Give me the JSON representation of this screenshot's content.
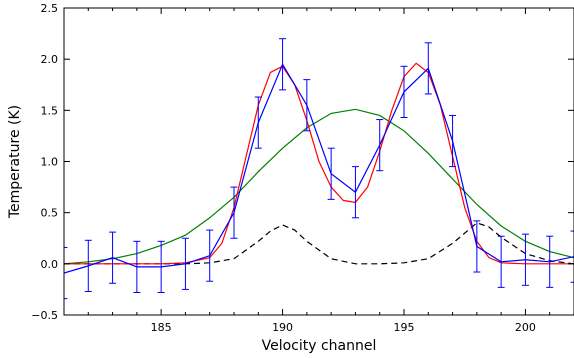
{
  "chart_data": {
    "type": "line",
    "title": "",
    "xlabel": "Velocity channel",
    "ylabel": "Temperature (K)",
    "xlim": [
      181,
      202
    ],
    "ylim": [
      -0.5,
      2.5
    ],
    "xticks": [
      185,
      190,
      195,
      200
    ],
    "xtick_labels": [
      "185",
      "190",
      "195",
      "200"
    ],
    "yticks": [
      -0.5,
      0.0,
      0.5,
      1.0,
      1.5,
      2.0,
      2.5
    ],
    "ytick_labels": [
      "−0.5",
      "0.0",
      "0.5",
      "1.0",
      "1.5",
      "2.0",
      "2.5"
    ],
    "grid": false,
    "legend": "none",
    "series": [
      {
        "style": "blue line with error bars",
        "color": "#0000ff",
        "x": [
          181,
          182,
          183,
          184,
          185,
          186,
          187,
          188,
          189,
          190,
          191,
          192,
          193,
          194,
          195,
          196,
          197,
          198,
          199,
          200,
          201,
          202
        ],
        "values": [
          -0.09,
          -0.02,
          0.06,
          -0.03,
          -0.03,
          0.0,
          0.08,
          0.5,
          1.38,
          1.95,
          1.55,
          0.88,
          0.7,
          1.16,
          1.68,
          1.91,
          1.2,
          0.17,
          0.02,
          0.04,
          0.02,
          0.07
        ],
        "errors": [
          0.25,
          0.25,
          0.25,
          0.25,
          0.25,
          0.25,
          0.25,
          0.25,
          0.25,
          0.25,
          0.25,
          0.25,
          0.25,
          0.25,
          0.25,
          0.25,
          0.25,
          0.25,
          0.25,
          0.25,
          0.25,
          0.25
        ]
      },
      {
        "style": "red fit",
        "color": "#ff0000",
        "x": [
          181,
          182,
          183,
          184,
          185,
          186,
          187,
          187.5,
          188,
          188.5,
          189,
          189.5,
          190,
          190.5,
          191,
          191.5,
          192,
          192.5,
          193,
          193.5,
          194,
          194.5,
          195,
          195.5,
          196,
          196.5,
          197,
          197.5,
          198,
          198.5,
          199,
          200,
          201,
          202
        ],
        "values": [
          0.0,
          0.0,
          0.0,
          0.0,
          0.0,
          0.01,
          0.06,
          0.2,
          0.55,
          1.05,
          1.55,
          1.87,
          1.93,
          1.75,
          1.4,
          1.0,
          0.75,
          0.62,
          0.6,
          0.75,
          1.1,
          1.5,
          1.83,
          1.96,
          1.87,
          1.55,
          1.05,
          0.55,
          0.22,
          0.06,
          0.01,
          0.0,
          0.0,
          0.0
        ]
      },
      {
        "style": "green broad component",
        "color": "#008000",
        "x": [
          181,
          182,
          183,
          184,
          185,
          186,
          187,
          188,
          189,
          190,
          191,
          192,
          193,
          194,
          195,
          196,
          197,
          198,
          199,
          200,
          201,
          202
        ],
        "values": [
          0.0,
          0.02,
          0.05,
          0.1,
          0.18,
          0.28,
          0.45,
          0.65,
          0.9,
          1.13,
          1.33,
          1.47,
          1.51,
          1.45,
          1.3,
          1.08,
          0.83,
          0.58,
          0.37,
          0.22,
          0.12,
          0.06
        ]
      },
      {
        "style": "black dashed component",
        "color": "#000000",
        "dashed": true,
        "x": [
          181,
          183,
          185,
          186,
          187,
          188,
          189,
          189.5,
          190,
          190.5,
          191,
          192,
          193,
          194,
          195,
          196,
          197,
          197.5,
          198,
          198.5,
          199,
          200,
          201,
          202
        ],
        "values": [
          0.0,
          0.0,
          0.0,
          0.0,
          0.01,
          0.05,
          0.22,
          0.32,
          0.38,
          0.33,
          0.22,
          0.05,
          0.0,
          0.0,
          0.01,
          0.05,
          0.2,
          0.3,
          0.4,
          0.36,
          0.26,
          0.1,
          0.03,
          0.0
        ]
      }
    ]
  }
}
